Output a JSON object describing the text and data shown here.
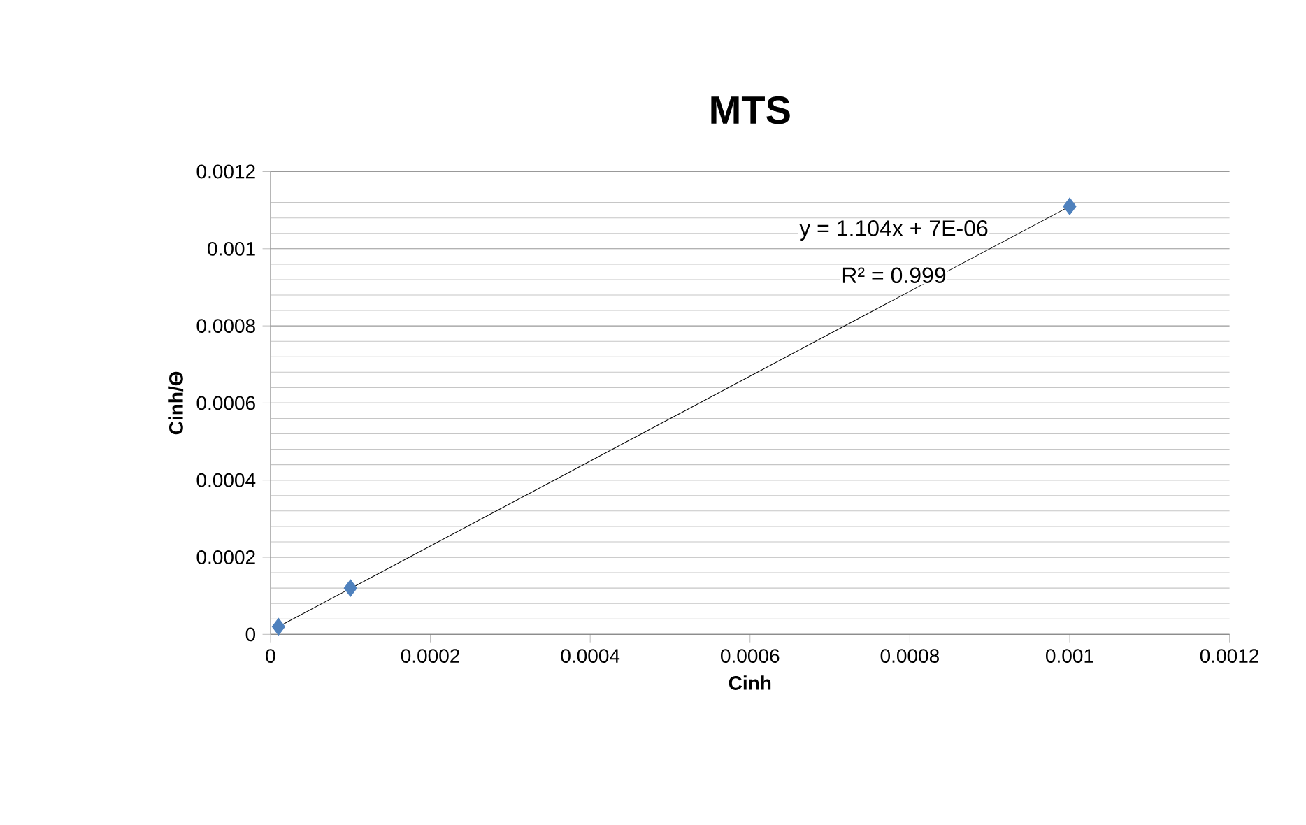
{
  "chart_data": {
    "type": "scatter",
    "title": "MTS",
    "xlabel": "Cinh",
    "ylabel": "Cinh/Θ",
    "xlim": [
      0,
      0.0012
    ],
    "ylim": [
      0,
      0.0012
    ],
    "xticks": [
      0,
      0.0002,
      0.0004,
      0.0006,
      0.0008,
      0.001,
      0.0012
    ],
    "yticks": [
      0,
      0.0002,
      0.0004,
      0.0006,
      0.0008,
      0.001,
      0.0012
    ],
    "grid": "y",
    "series": [
      {
        "color": "#4f81bd",
        "marker": "diamond",
        "x": [
          1e-05,
          0.0001,
          0.001
        ],
        "values": [
          2e-05,
          0.00012,
          0.00111
        ]
      },
      {
        "type": "line",
        "color": "#000000",
        "marker": "none",
        "line_style": "solid",
        "x": [
          1e-05,
          0.001
        ],
        "values": [
          2e-05,
          0.00111
        ]
      }
    ],
    "annotations": [
      "y = 1.104x + 7E-06",
      "R² = 0.999"
    ]
  }
}
